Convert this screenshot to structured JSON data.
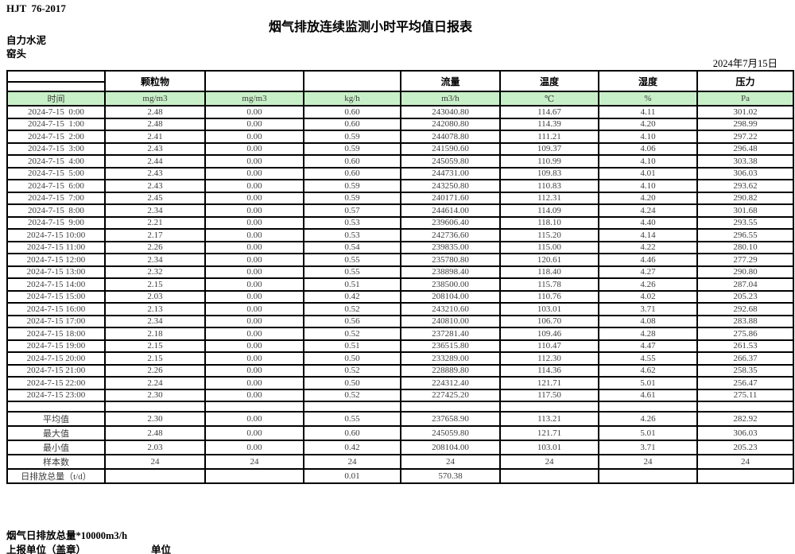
{
  "page": {
    "doc_code": "HJT  76-2017",
    "title": "烟气排放连续监测小时平均值日报表",
    "company": "自力水泥",
    "station": "窑头",
    "date": "2024年7月15日"
  },
  "colors": {
    "header_fill": "#c8f0c8",
    "border": "#000000",
    "data_text": "#3d3d3d"
  },
  "table": {
    "header_groups": [
      "颗粒物",
      "",
      "",
      "流量",
      "温度",
      "湿度",
      "压力"
    ],
    "unit_row": [
      "时间",
      "mg/m3",
      "mg/m3",
      "kg/h",
      "m3/h",
      "℃",
      "%",
      "Pa"
    ],
    "data_rows": [
      [
        "2024-7-15  0:00",
        "2.48",
        "0.00",
        "0.60",
        "243040.80",
        "114.67",
        "4.11",
        "301.02"
      ],
      [
        "2024-7-15  1:00",
        "2.48",
        "0.00",
        "0.60",
        "242080.80",
        "114.39",
        "4.20",
        "298.99"
      ],
      [
        "2024-7-15  2:00",
        "2.41",
        "0.00",
        "0.59",
        "244078.80",
        "111.21",
        "4.10",
        "297.22"
      ],
      [
        "2024-7-15  3:00",
        "2.43",
        "0.00",
        "0.59",
        "241590.60",
        "109.37",
        "4.06",
        "296.48"
      ],
      [
        "2024-7-15  4:00",
        "2.44",
        "0.00",
        "0.60",
        "245059.80",
        "110.99",
        "4.10",
        "303.38"
      ],
      [
        "2024-7-15  5:00",
        "2.43",
        "0.00",
        "0.60",
        "244731.00",
        "109.83",
        "4.01",
        "306.03"
      ],
      [
        "2024-7-15  6:00",
        "2.43",
        "0.00",
        "0.59",
        "243250.80",
        "110.83",
        "4.10",
        "293.62"
      ],
      [
        "2024-7-15  7:00",
        "2.45",
        "0.00",
        "0.59",
        "240171.60",
        "112.31",
        "4.20",
        "290.82"
      ],
      [
        "2024-7-15  8:00",
        "2.34",
        "0.00",
        "0.57",
        "244614.00",
        "114.09",
        "4.24",
        "301.68"
      ],
      [
        "2024-7-15  9:00",
        "2.21",
        "0.00",
        "0.53",
        "239606.40",
        "118.10",
        "4.40",
        "293.55"
      ],
      [
        "2024-7-15 10:00",
        "2.17",
        "0.00",
        "0.53",
        "242736.60",
        "115.20",
        "4.14",
        "296.55"
      ],
      [
        "2024-7-15 11:00",
        "2.26",
        "0.00",
        "0.54",
        "239835.00",
        "115.00",
        "4.22",
        "280.10"
      ],
      [
        "2024-7-15 12:00",
        "2.34",
        "0.00",
        "0.55",
        "235780.80",
        "120.61",
        "4.46",
        "277.29"
      ],
      [
        "2024-7-15 13:00",
        "2.32",
        "0.00",
        "0.55",
        "238898.40",
        "118.40",
        "4.27",
        "290.80"
      ],
      [
        "2024-7-15 14:00",
        "2.15",
        "0.00",
        "0.51",
        "238500.00",
        "115.78",
        "4.26",
        "287.04"
      ],
      [
        "2024-7-15 15:00",
        "2.03",
        "0.00",
        "0.42",
        "208104.00",
        "110.76",
        "4.02",
        "205.23"
      ],
      [
        "2024-7-15 16:00",
        "2.13",
        "0.00",
        "0.52",
        "243210.60",
        "103.01",
        "3.71",
        "292.68"
      ],
      [
        "2024-7-15 17:00",
        "2.34",
        "0.00",
        "0.56",
        "240810.00",
        "106.70",
        "4.08",
        "283.88"
      ],
      [
        "2024-7-15 18:00",
        "2.18",
        "0.00",
        "0.52",
        "237281.40",
        "109.46",
        "4.28",
        "275.86"
      ],
      [
        "2024-7-15 19:00",
        "2.15",
        "0.00",
        "0.51",
        "236515.80",
        "110.47",
        "4.47",
        "261.53"
      ],
      [
        "2024-7-15 20:00",
        "2.15",
        "0.00",
        "0.50",
        "233289.00",
        "112.30",
        "4.55",
        "266.37"
      ],
      [
        "2024-7-15 21:00",
        "2.26",
        "0.00",
        "0.52",
        "228889.80",
        "114.36",
        "4.62",
        "258.35"
      ],
      [
        "2024-7-15 22:00",
        "2.24",
        "0.00",
        "0.50",
        "224312.40",
        "121.71",
        "5.01",
        "256.47"
      ],
      [
        "2024-7-15 23:00",
        "2.30",
        "0.00",
        "0.52",
        "227425.20",
        "117.50",
        "4.61",
        "275.11"
      ]
    ],
    "summary_rows": [
      [
        "平均值",
        "2.30",
        "0.00",
        "0.55",
        "237658.90",
        "113.21",
        "4.26",
        "282.92"
      ],
      [
        "最大值",
        "2.48",
        "0.00",
        "0.60",
        "245059.80",
        "121.71",
        "5.01",
        "306.03"
      ],
      [
        "最小值",
        "2.03",
        "0.00",
        "0.42",
        "208104.00",
        "103.01",
        "3.71",
        "205.23"
      ],
      [
        "样本数",
        "24",
        "24",
        "24",
        "24",
        "24",
        "24",
        "24"
      ],
      [
        "日排放总量（t/d）",
        "",
        "",
        "0.01",
        "570.38",
        "",
        "",
        ""
      ]
    ]
  },
  "footer": {
    "note": "烟气日排放总量*10000m3/h",
    "report_unit": "上报单位（盖章）",
    "unit_label": "单位"
  }
}
